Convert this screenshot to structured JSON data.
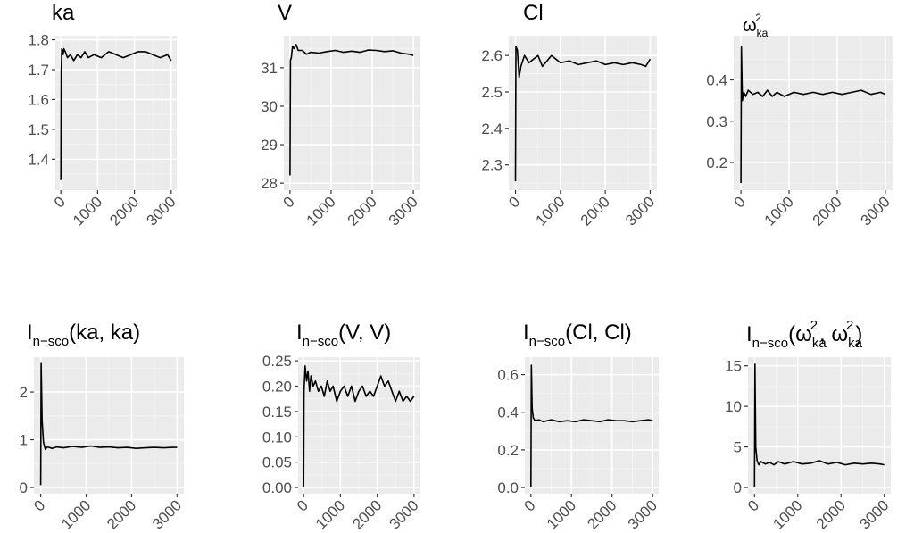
{
  "figure": {
    "layout": "2 rows x 4 columns of small-multiple line charts"
  },
  "chart_data": [
    {
      "type": "line",
      "title": "ka",
      "title_parts": [
        {
          "text": "ka",
          "kind": "normal"
        }
      ],
      "x_ticks": [
        "0",
        "1000",
        "2000",
        "3000"
      ],
      "y_ticks": [
        1.4,
        1.5,
        1.6,
        1.7,
        1.8
      ],
      "y_tick_labels": [
        "1.4",
        "1.5",
        "1.6",
        "1.7",
        "1.8"
      ],
      "xlim": [
        0,
        3000
      ],
      "ylim": [
        1.32,
        1.79
      ],
      "grid": true,
      "series": [
        {
          "x": [
            0,
            10,
            25,
            60,
            80,
            120,
            180,
            260,
            350,
            450,
            550,
            650,
            750,
            900,
            1100,
            1300,
            1500,
            1700,
            1900,
            2100,
            2300,
            2500,
            2700,
            2900,
            3000
          ],
          "y": [
            1.33,
            1.69,
            1.77,
            1.75,
            1.77,
            1.76,
            1.74,
            1.75,
            1.73,
            1.75,
            1.74,
            1.76,
            1.74,
            1.75,
            1.74,
            1.76,
            1.75,
            1.74,
            1.75,
            1.76,
            1.76,
            1.75,
            1.74,
            1.75,
            1.73
          ]
        }
      ]
    },
    {
      "type": "line",
      "title": "V",
      "title_parts": [
        {
          "text": "V",
          "kind": "normal"
        }
      ],
      "x_ticks": [
        "0",
        "1000",
        "2000",
        "3000"
      ],
      "y_ticks": [
        28,
        29,
        30,
        31
      ],
      "y_tick_labels": [
        "28",
        "29",
        "30",
        "31"
      ],
      "xlim": [
        0,
        3000
      ],
      "ylim": [
        28.0,
        31.65
      ],
      "grid": true,
      "series": [
        {
          "x": [
            0,
            10,
            30,
            60,
            100,
            150,
            200,
            300,
            400,
            500,
            700,
            900,
            1100,
            1300,
            1500,
            1700,
            1900,
            2100,
            2300,
            2500,
            2700,
            2900,
            3000
          ],
          "y": [
            28.2,
            31.2,
            31.25,
            31.55,
            31.5,
            31.6,
            31.45,
            31.45,
            31.35,
            31.4,
            31.38,
            31.42,
            31.45,
            31.4,
            31.43,
            31.4,
            31.46,
            31.45,
            31.42,
            31.44,
            31.38,
            31.35,
            31.32
          ]
        }
      ]
    },
    {
      "type": "line",
      "title": "Cl",
      "title_parts": [
        {
          "text": "Cl",
          "kind": "normal"
        }
      ],
      "x_ticks": [
        "0",
        "1000",
        "2000",
        "3000"
      ],
      "y_ticks": [
        2.3,
        2.4,
        2.5,
        2.6
      ],
      "y_tick_labels": [
        "2.3",
        "2.4",
        "2.5",
        "2.6"
      ],
      "xlim": [
        0,
        3000
      ],
      "ylim": [
        2.25,
        2.635
      ],
      "grid": true,
      "series": [
        {
          "x": [
            0,
            10,
            40,
            80,
            120,
            200,
            300,
            400,
            500,
            600,
            700,
            800,
            1000,
            1200,
            1400,
            1600,
            1800,
            2000,
            2200,
            2400,
            2600,
            2800,
            2900,
            3000
          ],
          "y": [
            2.255,
            2.625,
            2.615,
            2.54,
            2.57,
            2.6,
            2.58,
            2.59,
            2.6,
            2.57,
            2.585,
            2.6,
            2.58,
            2.585,
            2.575,
            2.58,
            2.585,
            2.575,
            2.58,
            2.575,
            2.58,
            2.575,
            2.57,
            2.59
          ]
        }
      ]
    },
    {
      "type": "line",
      "title": "ω_ka^2",
      "title_parts": [
        {
          "text": "ω",
          "kind": "normal"
        },
        {
          "text": "ka",
          "kind": "sub"
        },
        {
          "text": "2",
          "kind": "sup"
        }
      ],
      "x_ticks": [
        "0",
        "1000",
        "2000",
        "3000"
      ],
      "y_ticks": [
        0.2,
        0.3,
        0.4
      ],
      "y_tick_labels": [
        "0.2",
        "0.3",
        "0.4"
      ],
      "xlim": [
        0,
        3000
      ],
      "ylim": [
        0.15,
        0.49
      ],
      "grid": true,
      "series": [
        {
          "x": [
            0,
            10,
            30,
            60,
            100,
            150,
            250,
            350,
            450,
            550,
            650,
            750,
            900,
            1100,
            1300,
            1500,
            1700,
            1900,
            2100,
            2300,
            2500,
            2700,
            2900,
            3000
          ],
          "y": [
            0.15,
            0.48,
            0.35,
            0.37,
            0.36,
            0.375,
            0.365,
            0.37,
            0.36,
            0.375,
            0.36,
            0.37,
            0.36,
            0.37,
            0.365,
            0.37,
            0.365,
            0.37,
            0.365,
            0.37,
            0.375,
            0.365,
            0.37,
            0.365
          ]
        }
      ]
    },
    {
      "type": "line",
      "title": "I_n−sco(ka, ka)",
      "title_parts": [
        {
          "text": "I",
          "kind": "normal"
        },
        {
          "text": "n−sco",
          "kind": "sub"
        },
        {
          "text": "(ka, ka)",
          "kind": "normal"
        }
      ],
      "x_ticks": [
        "0",
        "1000",
        "2000",
        "3000"
      ],
      "y_ticks": [
        0,
        1,
        2
      ],
      "y_tick_labels": [
        "0",
        "1",
        "2"
      ],
      "xlim": [
        0,
        3000
      ],
      "ylim": [
        0.0,
        2.6
      ],
      "grid": true,
      "series": [
        {
          "x": [
            0,
            10,
            30,
            60,
            100,
            150,
            250,
            350,
            500,
            700,
            900,
            1100,
            1300,
            1500,
            1700,
            1900,
            2100,
            2300,
            2500,
            2700,
            2900,
            3000
          ],
          "y": [
            0.05,
            2.6,
            1.4,
            0.95,
            0.8,
            0.85,
            0.82,
            0.85,
            0.83,
            0.86,
            0.84,
            0.87,
            0.84,
            0.85,
            0.83,
            0.84,
            0.82,
            0.83,
            0.84,
            0.83,
            0.84,
            0.84
          ]
        }
      ]
    },
    {
      "type": "line",
      "title": "I_n−sco(V, V)",
      "title_parts": [
        {
          "text": "I",
          "kind": "normal"
        },
        {
          "text": "n−sco",
          "kind": "sub"
        },
        {
          "text": "(V, V)",
          "kind": "normal"
        }
      ],
      "x_ticks": [
        "0",
        "1000",
        "2000",
        "3000"
      ],
      "y_ticks": [
        0.0,
        0.05,
        0.1,
        0.15,
        0.2,
        0.25
      ],
      "y_tick_labels": [
        "0.00",
        "0.05",
        "0.10",
        "0.15",
        "0.20",
        "0.25"
      ],
      "xlim": [
        0,
        3000
      ],
      "ylim": [
        0.0,
        0.245
      ],
      "grid": true,
      "series": [
        {
          "x": [
            0,
            10,
            40,
            80,
            120,
            160,
            200,
            260,
            320,
            400,
            480,
            560,
            640,
            720,
            800,
            900,
            1000,
            1100,
            1200,
            1300,
            1400,
            1500,
            1600,
            1700,
            1800,
            1900,
            2000,
            2100,
            2200,
            2300,
            2400,
            2500,
            2600,
            2700,
            2800,
            2900,
            3000
          ],
          "y": [
            0.0,
            0.19,
            0.24,
            0.21,
            0.23,
            0.19,
            0.22,
            0.2,
            0.21,
            0.19,
            0.2,
            0.18,
            0.21,
            0.19,
            0.2,
            0.17,
            0.19,
            0.2,
            0.18,
            0.2,
            0.17,
            0.19,
            0.2,
            0.18,
            0.19,
            0.18,
            0.2,
            0.22,
            0.2,
            0.21,
            0.19,
            0.17,
            0.19,
            0.17,
            0.18,
            0.17,
            0.18
          ]
        }
      ]
    },
    {
      "type": "line",
      "title": "I_n−sco(Cl, Cl)",
      "title_parts": [
        {
          "text": "I",
          "kind": "normal"
        },
        {
          "text": "n−sco",
          "kind": "sub"
        },
        {
          "text": "(Cl, Cl)",
          "kind": "normal"
        }
      ],
      "x_ticks": [
        "0",
        "1000",
        "2000",
        "3000"
      ],
      "y_ticks": [
        0.0,
        0.2,
        0.4,
        0.6
      ],
      "y_tick_labels": [
        "0.0",
        "0.2",
        "0.4",
        "0.6"
      ],
      "xlim": [
        0,
        3000
      ],
      "ylim": [
        0.0,
        0.66
      ],
      "grid": true,
      "series": [
        {
          "x": [
            0,
            10,
            30,
            60,
            100,
            200,
            300,
            500,
            700,
            900,
            1100,
            1300,
            1500,
            1700,
            1900,
            2100,
            2300,
            2500,
            2700,
            2900,
            3000
          ],
          "y": [
            0.0,
            0.65,
            0.42,
            0.37,
            0.355,
            0.36,
            0.35,
            0.36,
            0.35,
            0.355,
            0.35,
            0.36,
            0.355,
            0.35,
            0.36,
            0.355,
            0.355,
            0.35,
            0.355,
            0.36,
            0.355
          ]
        }
      ]
    },
    {
      "type": "line",
      "title": "I_n−sco(ω_ka^2, ω_ka^2)",
      "title_parts": [
        {
          "text": "I",
          "kind": "normal"
        },
        {
          "text": "n−sco",
          "kind": "sub"
        },
        {
          "text": "(ω",
          "kind": "normal"
        },
        {
          "text": "ka",
          "kind": "sub"
        },
        {
          "text": "2",
          "kind": "sup"
        },
        {
          "text": ", ω",
          "kind": "normal"
        },
        {
          "text": "ka",
          "kind": "sub"
        },
        {
          "text": "2",
          "kind": "sup"
        },
        {
          "text": ")",
          "kind": "normal"
        }
      ],
      "x_ticks": [
        "0",
        "1000",
        "2000",
        "3000"
      ],
      "y_ticks": [
        0,
        5,
        10,
        15
      ],
      "y_tick_labels": [
        "0",
        "5",
        "10",
        "15"
      ],
      "xlim": [
        0,
        3000
      ],
      "ylim": [
        0.0,
        15.3
      ],
      "grid": true,
      "series": [
        {
          "x": [
            0,
            10,
            30,
            60,
            100,
            150,
            250,
            350,
            450,
            550,
            700,
            900,
            1100,
            1300,
            1500,
            1700,
            1900,
            2100,
            2300,
            2500,
            2700,
            2900,
            3000
          ],
          "y": [
            0.1,
            15.2,
            5.0,
            3.3,
            2.8,
            3.2,
            2.9,
            3.1,
            2.8,
            3.2,
            2.9,
            3.2,
            2.9,
            3.0,
            3.3,
            2.9,
            3.1,
            2.8,
            3.0,
            2.9,
            3.0,
            2.9,
            2.8
          ]
        }
      ]
    }
  ]
}
